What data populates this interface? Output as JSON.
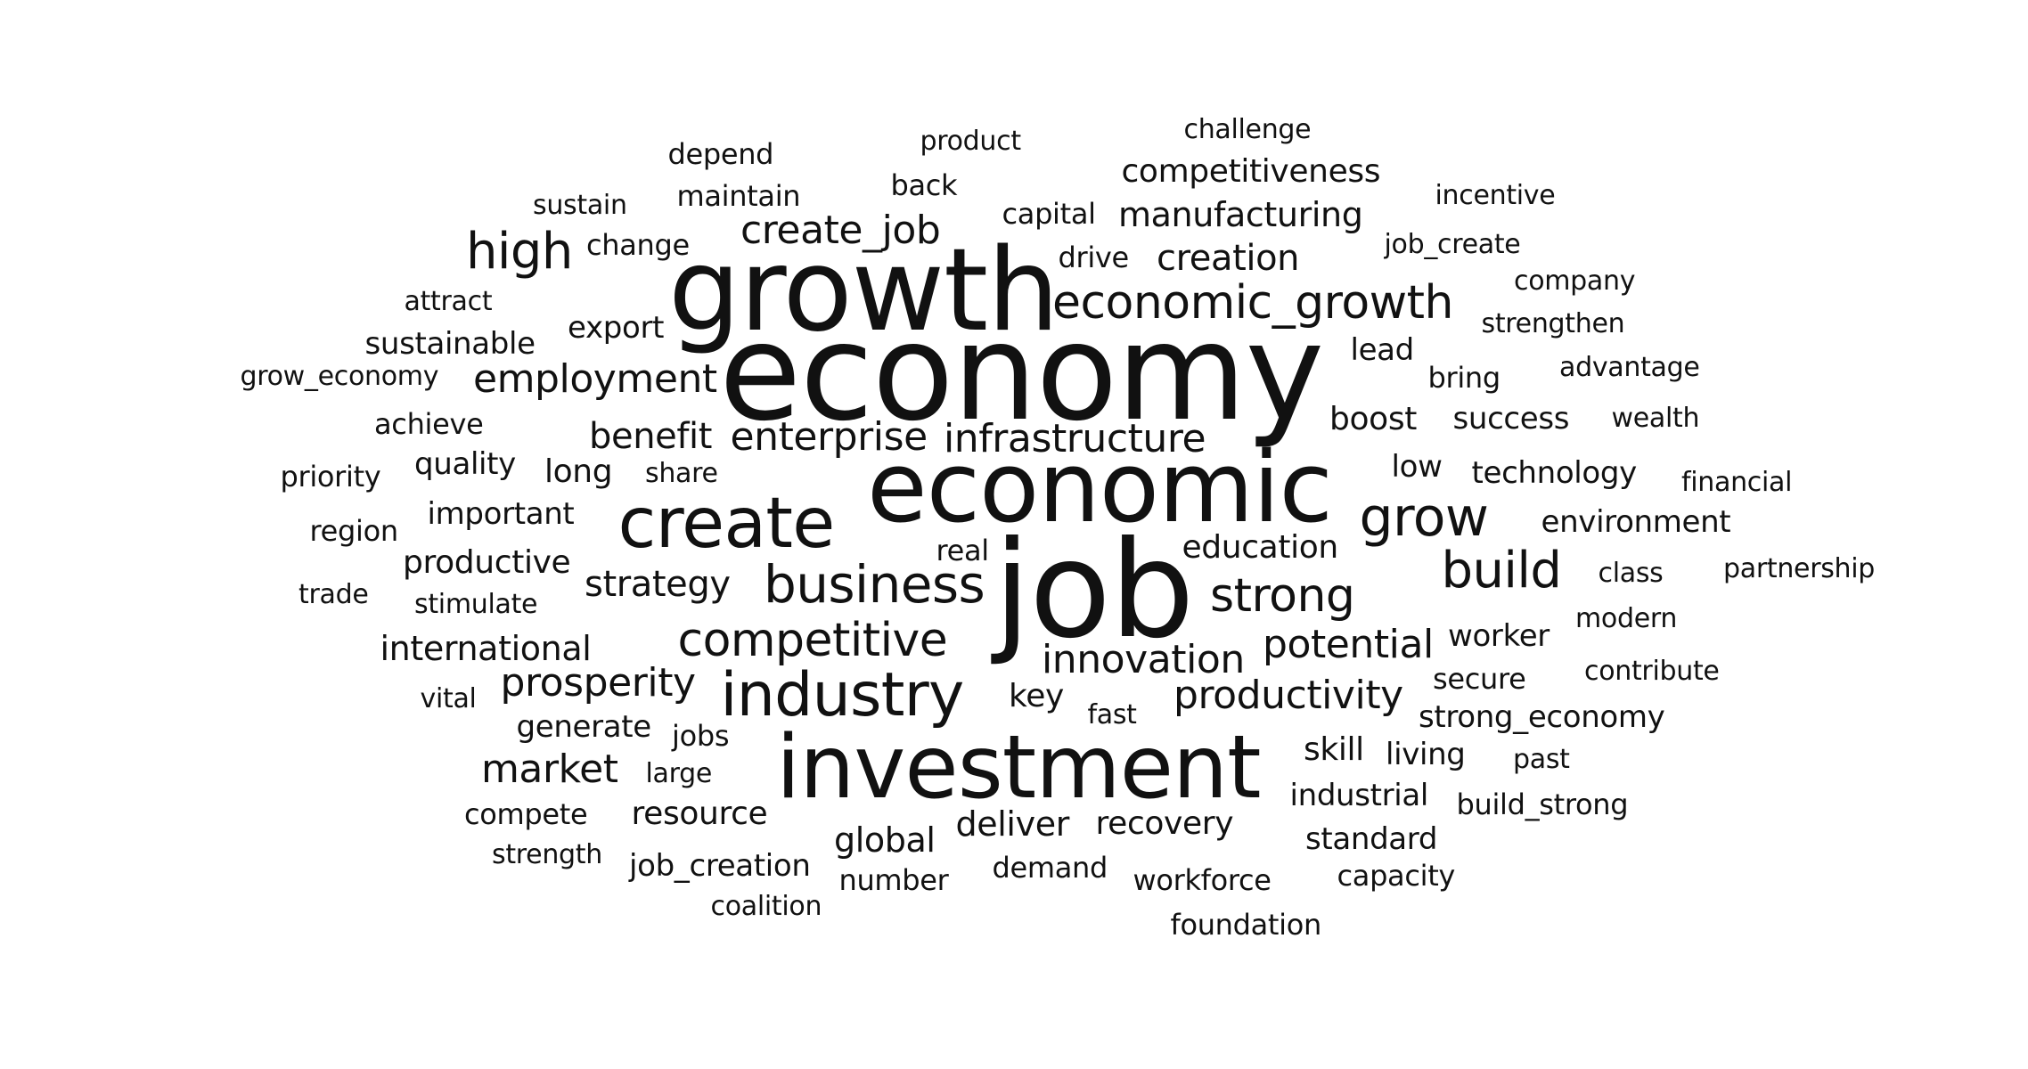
{
  "words": [
    "economy",
    "job",
    "growth",
    "economic",
    "investment",
    "create",
    "industry",
    "business",
    "grow",
    "high",
    "build",
    "strong",
    "competitive",
    "economic_growth",
    "employment",
    "create_job",
    "enterprise",
    "infrastructure",
    "innovation",
    "productivity",
    "potential",
    "prosperity",
    "market",
    "benefit",
    "strategy",
    "international",
    "manufacturing",
    "creation",
    "competitiveness",
    "productive",
    "long",
    "key",
    "education",
    "skill",
    "export",
    "quality",
    "important",
    "deliver",
    "recovery",
    "global",
    "resource",
    "industrial",
    "job_creation",
    "lead",
    "boost",
    "success",
    "technology",
    "low",
    "environment",
    "worker",
    "secure",
    "strong_economy",
    "living",
    "standard",
    "demand",
    "workforce",
    "capacity",
    "number",
    "generate",
    "jobs",
    "sustainable",
    "achieve",
    "priority",
    "region",
    "trade",
    "stimulate",
    "vital",
    "compete",
    "strength",
    "coalition",
    "foundation",
    "large",
    "fast",
    "real",
    "share",
    "change",
    "maintain",
    "depend",
    "sustain",
    "product",
    "back",
    "capital",
    "drive",
    "challenge",
    "incentive",
    "job_create",
    "company",
    "strengthen",
    "advantage",
    "bring",
    "wealth",
    "financial",
    "class",
    "partnership",
    "modern",
    "contribute",
    "past",
    "build_strong",
    "grow_economy",
    "attract"
  ]
}
